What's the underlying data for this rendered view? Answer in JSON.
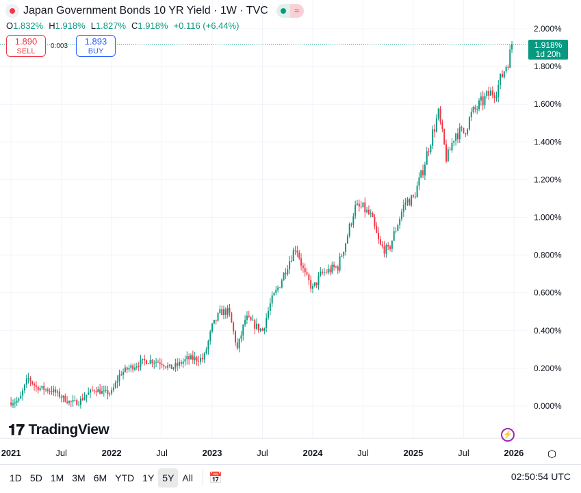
{
  "header": {
    "title": "Japan Government Bonds 10 YR Yield · 1W · TVC",
    "pill_icon": "approx-icon"
  },
  "ohlc": {
    "o_label": "O",
    "o": "1.832%",
    "h_label": "H",
    "h": "1.918%",
    "l_label": "L",
    "l": "1.827%",
    "c_label": "C",
    "c": "1.918%",
    "change": "+0.116 (+6.44%)"
  },
  "trade": {
    "sell_price": "1.890",
    "sell_label": "SELL",
    "spread": "0.003",
    "buy_price": "1.893",
    "buy_label": "BUY"
  },
  "last_price": {
    "value": "1.918%",
    "countdown": "1d 20h"
  },
  "logo": "TradingView",
  "toolbar": {
    "ranges": [
      "1D",
      "5D",
      "1M",
      "3M",
      "6M",
      "YTD",
      "1Y",
      "5Y",
      "All"
    ],
    "active": "5Y",
    "time": "02:50:54 UTC"
  },
  "colors": {
    "up": "#089981",
    "down": "#f23645",
    "grid": "#f0f3fa"
  },
  "chart_data": {
    "type": "candlestick",
    "interval": "1W",
    "y_ticks": [
      "2.000%",
      "1.800%",
      "1.600%",
      "1.400%",
      "1.200%",
      "1.000%",
      "0.800%",
      "0.600%",
      "0.400%",
      "0.200%",
      "0.000%"
    ],
    "y_tick_values": [
      2.0,
      1.8,
      1.6,
      1.4,
      1.2,
      1.0,
      0.8,
      0.6,
      0.4,
      0.2,
      0.0
    ],
    "ylim": [
      -0.12,
      2.15
    ],
    "x_ticks": [
      "2021",
      "Jul",
      "2022",
      "Jul",
      "2023",
      "Jul",
      "2024",
      "Jul",
      "2025",
      "Jul",
      "2026"
    ],
    "x_tick_years": [
      2021.0,
      2021.5,
      2022.0,
      2022.5,
      2023.0,
      2023.5,
      2024.0,
      2024.5,
      2025.0,
      2025.5,
      2026.0
    ],
    "xlim": [
      2020.89,
      2026.13
    ],
    "start_year": 2021.0,
    "monthly_closes": [
      0.03,
      0.15,
      0.1,
      0.09,
      0.08,
      0.05,
      0.02,
      0.02,
      0.06,
      0.09,
      0.07,
      0.07,
      0.17,
      0.2,
      0.22,
      0.24,
      0.24,
      0.23,
      0.2,
      0.22,
      0.25,
      0.25,
      0.25,
      0.42,
      0.5,
      0.5,
      0.3,
      0.47,
      0.43,
      0.4,
      0.55,
      0.64,
      0.75,
      0.85,
      0.7,
      0.62,
      0.7,
      0.72,
      0.74,
      0.88,
      1.05,
      1.05,
      1.0,
      0.85,
      0.82,
      0.95,
      1.08,
      1.1,
      1.23,
      1.4,
      1.55,
      1.3,
      1.45,
      1.45,
      1.55,
      1.6,
      1.65,
      1.68,
      1.8,
      1.918
    ]
  }
}
